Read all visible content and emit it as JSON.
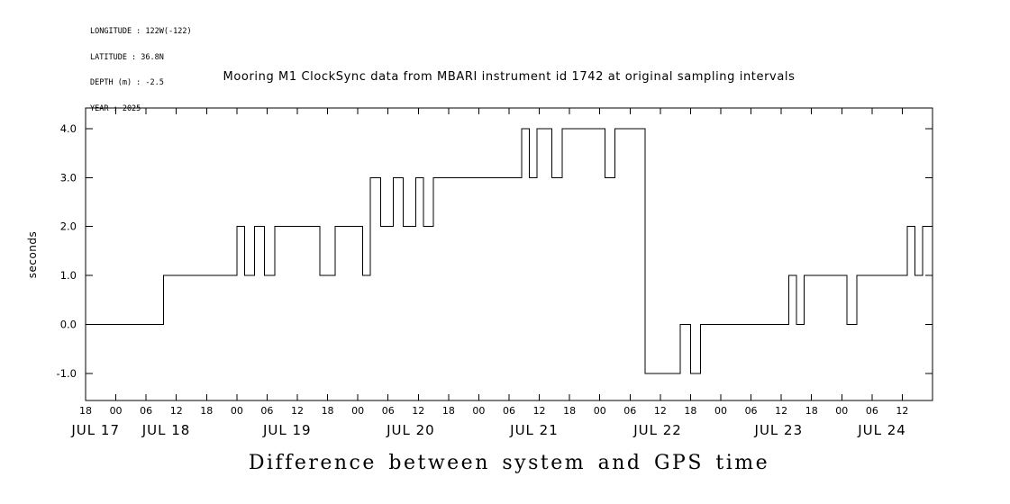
{
  "info": {
    "lines": [
      "LONGITUDE : 122W(-122)",
      "LATITUDE : 36.8N",
      "DEPTH (m) : -2.5",
      "YEAR : 2025"
    ]
  },
  "title": "Mooring M1 ClockSync data from MBARI instrument id 1742 at original sampling intervals",
  "caption": "Difference between system and GPS time",
  "chart_data": {
    "type": "line",
    "step": true,
    "title": "Mooring M1 ClockSync data from MBARI instrument id 1742 at original sampling intervals",
    "xlabel": "",
    "ylabel": "seconds",
    "x_unit": "hours since JUL 17 18:00",
    "xlim": [
      0,
      168
    ],
    "ylim": [
      -1.55,
      4.42
    ],
    "grid": false,
    "legend": false,
    "line_color": "#000000",
    "y_ticks": [
      {
        "v": -1,
        "label": "-1.0"
      },
      {
        "v": 0,
        "label": "0.0"
      },
      {
        "v": 1,
        "label": "1.0"
      },
      {
        "v": 2,
        "label": "2.0"
      },
      {
        "v": 3,
        "label": "3.0"
      },
      {
        "v": 4,
        "label": "4.0"
      }
    ],
    "x_tick_interval_hours": 6,
    "x_tick_labels": [
      "18",
      "00",
      "06",
      "12",
      "18",
      "00",
      "06",
      "12",
      "18",
      "00",
      "06",
      "12",
      "18",
      "00",
      "06",
      "12",
      "18",
      "00",
      "06",
      "12",
      "18",
      "00",
      "06",
      "12",
      "18",
      "00",
      "06",
      "12"
    ],
    "day_labels": [
      {
        "label": "JUL 17",
        "t": 2
      },
      {
        "label": "JUL 18",
        "t": 16
      },
      {
        "label": "JUL 19",
        "t": 40
      },
      {
        "label": "JUL 20",
        "t": 64.5
      },
      {
        "label": "JUL 21",
        "t": 89
      },
      {
        "label": "JUL 22",
        "t": 113.5
      },
      {
        "label": "JUL 23",
        "t": 137.5
      },
      {
        "label": "JUL 24",
        "t": 158
      }
    ],
    "points": [
      [
        0,
        0
      ],
      [
        15.5,
        1
      ],
      [
        30,
        2
      ],
      [
        31.5,
        1
      ],
      [
        33.5,
        2
      ],
      [
        35.5,
        1
      ],
      [
        37.5,
        2
      ],
      [
        46.5,
        1
      ],
      [
        49.5,
        2
      ],
      [
        55,
        1
      ],
      [
        56.5,
        3
      ],
      [
        58.5,
        2
      ],
      [
        61,
        3
      ],
      [
        63,
        2
      ],
      [
        65.5,
        3
      ],
      [
        67,
        2
      ],
      [
        69,
        3
      ],
      [
        86.5,
        4
      ],
      [
        88,
        3
      ],
      [
        89.5,
        4
      ],
      [
        92.5,
        3
      ],
      [
        94.5,
        4
      ],
      [
        103,
        3
      ],
      [
        105,
        4
      ],
      [
        111,
        -1
      ],
      [
        118,
        0
      ],
      [
        120,
        -1
      ],
      [
        122,
        0
      ],
      [
        139.5,
        1
      ],
      [
        141,
        0
      ],
      [
        142.5,
        1
      ],
      [
        151,
        0
      ],
      [
        153,
        1
      ],
      [
        163,
        2
      ],
      [
        164.5,
        1
      ],
      [
        166,
        2
      ],
      [
        168,
        2
      ]
    ]
  }
}
